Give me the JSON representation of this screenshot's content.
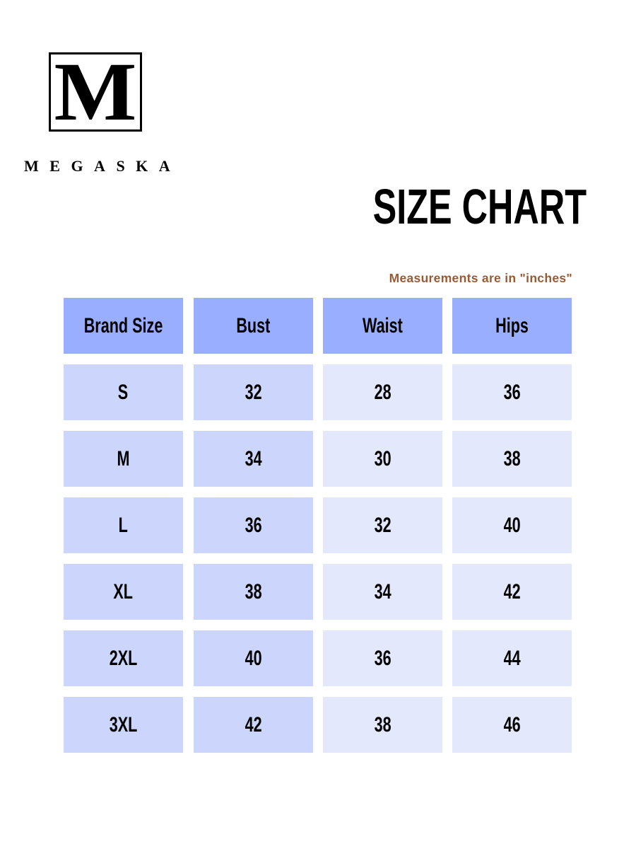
{
  "brand": {
    "logo_letter": "M",
    "name": "MEGASKA"
  },
  "title": "SIZE CHART",
  "note": "Measurements are in \"inches\"",
  "colors": {
    "header": "#9aaeff",
    "body_dark": "#ccd6fc",
    "body_light": "#e3e8fc",
    "note": "#9a5a34"
  },
  "table": {
    "headers": [
      "Brand Size",
      "Bust",
      "Waist",
      "Hips"
    ],
    "rows": [
      [
        "S",
        "32",
        "28",
        "36"
      ],
      [
        "M",
        "34",
        "30",
        "38"
      ],
      [
        "L",
        "36",
        "32",
        "40"
      ],
      [
        "XL",
        "38",
        "34",
        "42"
      ],
      [
        "2XL",
        "40",
        "36",
        "44"
      ],
      [
        "3XL",
        "42",
        "38",
        "46"
      ]
    ]
  }
}
